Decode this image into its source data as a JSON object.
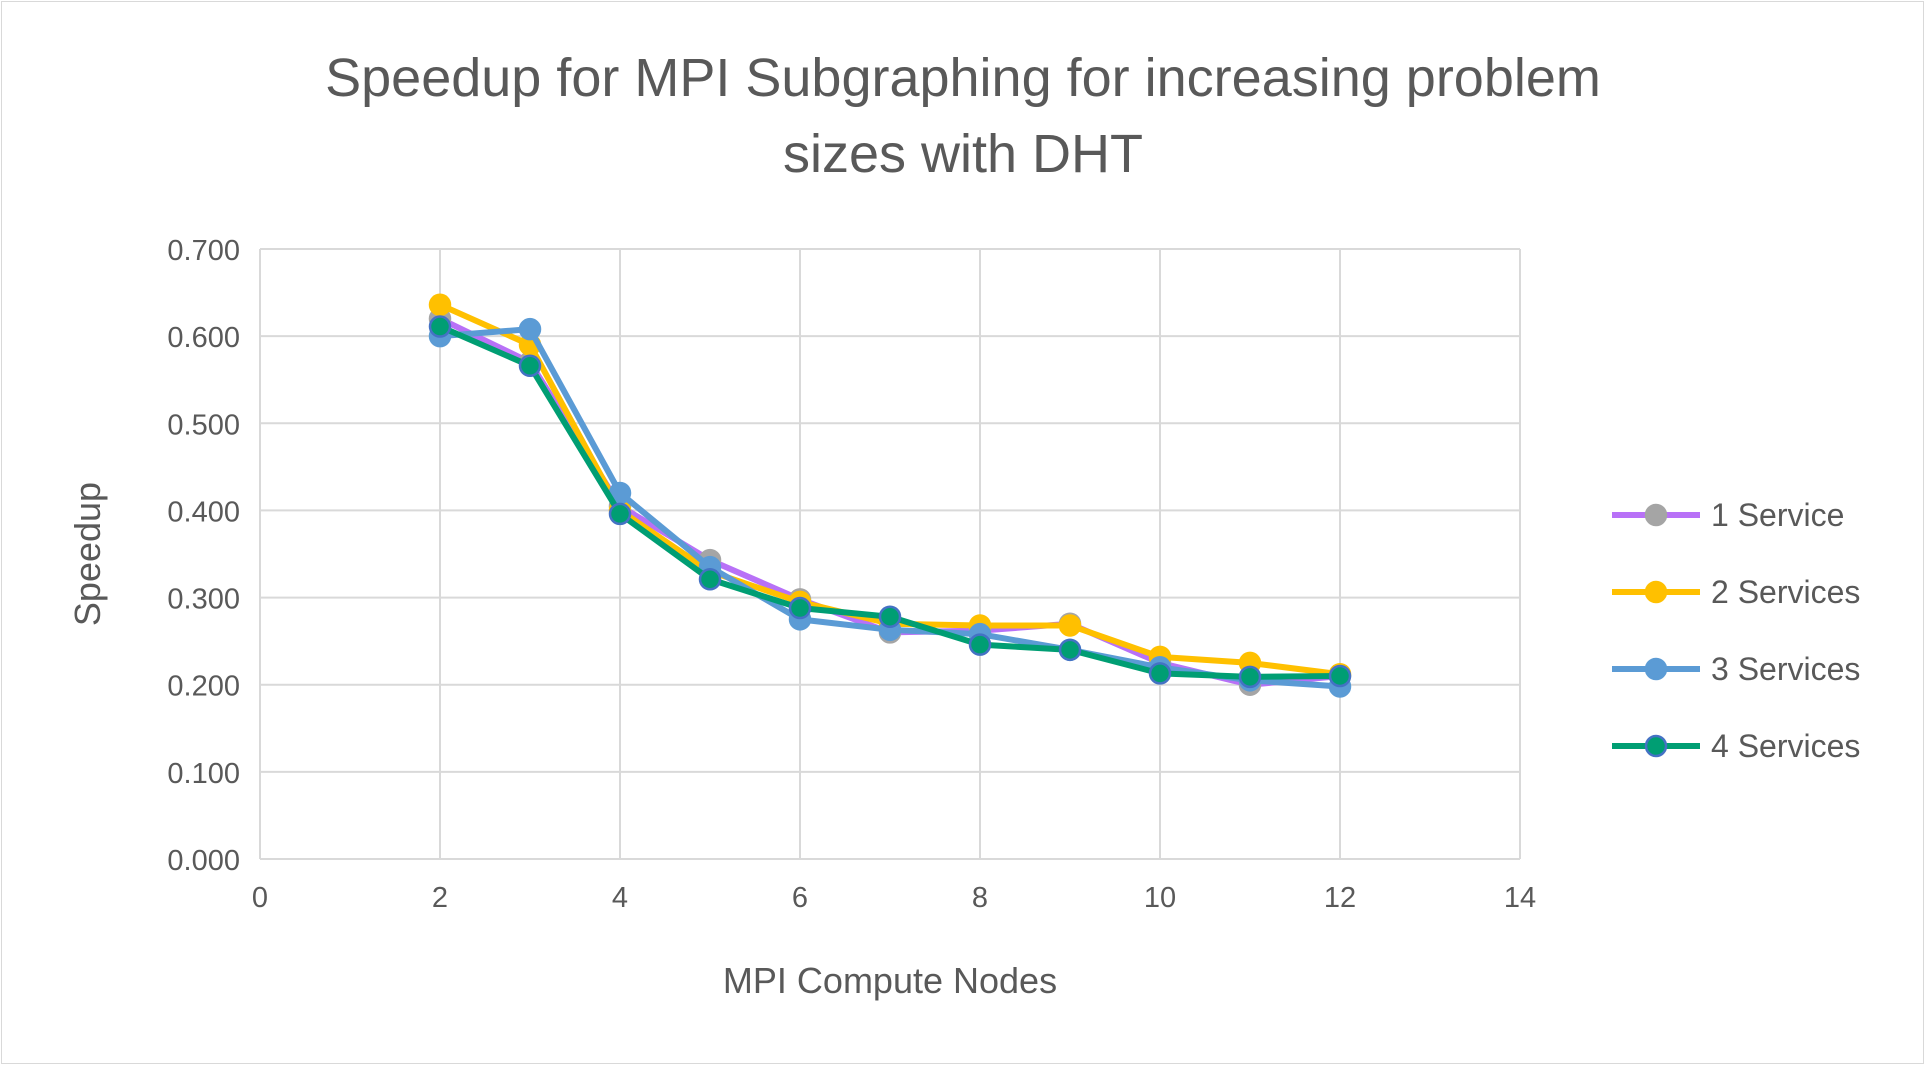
{
  "chart_data": {
    "type": "line",
    "title_lines": [
      "Speedup for MPI Subgraphing for increasing problem",
      "sizes with DHT"
    ],
    "xlabel": "MPI Compute Nodes",
    "ylabel": "Speedup",
    "xlim": [
      0,
      14
    ],
    "ylim": [
      0,
      0.7
    ],
    "xticks": [
      "0",
      "2",
      "4",
      "6",
      "8",
      "10",
      "12",
      "14"
    ],
    "yticks": [
      "0.000",
      "0.100",
      "0.200",
      "0.300",
      "0.400",
      "0.500",
      "0.600",
      "0.700"
    ],
    "grid": true,
    "legend_position": "right",
    "x": [
      2,
      3,
      4,
      5,
      6,
      7,
      8,
      9,
      10,
      11,
      12
    ],
    "series": [
      {
        "name": "1 Service",
        "line_color": "#b871f7",
        "marker_color": "#a5a5a5",
        "marker_edge": "#a5a5a5",
        "values": [
          0.62,
          0.57,
          0.405,
          0.343,
          0.298,
          0.26,
          0.262,
          0.27,
          0.225,
          0.2,
          0.21
        ]
      },
      {
        "name": "2 Services",
        "line_color": "#ffc000",
        "marker_color": "#ffc000",
        "marker_edge": "#ffc000",
        "values": [
          0.636,
          0.59,
          0.4,
          0.33,
          0.295,
          0.27,
          0.268,
          0.268,
          0.232,
          0.225,
          0.212
        ]
      },
      {
        "name": "3 Services",
        "line_color": "#5b9bd5",
        "marker_color": "#5b9bd5",
        "marker_edge": "#5b9bd5",
        "values": [
          0.6,
          0.608,
          0.42,
          0.335,
          0.275,
          0.263,
          0.258,
          0.24,
          0.22,
          0.205,
          0.198
        ]
      },
      {
        "name": "4 Services",
        "line_color": "#009e73",
        "marker_color": "#009e73",
        "marker_edge": "#4472c4",
        "values": [
          0.611,
          0.566,
          0.396,
          0.321,
          0.288,
          0.278,
          0.246,
          0.24,
          0.213,
          0.209,
          0.21
        ]
      }
    ]
  }
}
